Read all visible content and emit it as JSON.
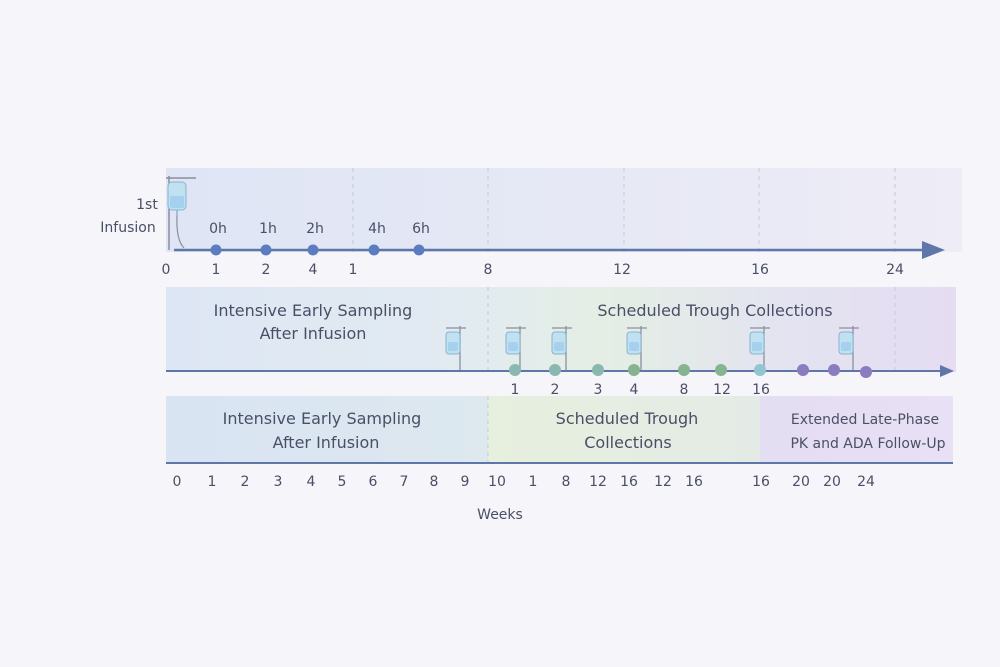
{
  "colors": {
    "axis": "#5f76a8",
    "timeline_dot": "#5b7cc0",
    "trough_dot_teal": "#8ab8b0",
    "trough_dot_green": "#86b490",
    "trough_dot_cyan": "#8fc6cf",
    "late_dot_purple": "#8b7cc0",
    "band_blue": "#dfe6f3",
    "band_green": "#e6efdf",
    "band_purple": "#e6def3",
    "iv_bag": "#bfe1f2"
  },
  "top_timeline": {
    "event_label_line1": "1st",
    "event_label_line2": "Infusion",
    "hour_labels": [
      "0h",
      "1h",
      "2h",
      "4h",
      "6h"
    ],
    "axis_ticks": [
      "0",
      "1",
      "2",
      "4",
      "1",
      "8",
      "12",
      "16",
      "24"
    ]
  },
  "middle_panel": {
    "left_title_line1": "Intensive Early Sampling",
    "left_title_line2": "After Infusion",
    "right_title": "Scheduled Trough Collections",
    "point_labels": [
      "1",
      "2",
      "3",
      "4",
      "8",
      "12",
      "16"
    ]
  },
  "bottom_panel": {
    "phase1_line1": "Intensive Early Sampling",
    "phase1_line2": "After Infusion",
    "phase2_line1": "Scheduled Trough",
    "phase2_line2": "Collections",
    "phase3_line1": "Extended Late-Phase",
    "phase3_line2": "PK and ADA Follow-Up",
    "axis_ticks": [
      "0",
      "1",
      "2",
      "3",
      "4",
      "5",
      "6",
      "7",
      "8",
      "9",
      "10",
      "1",
      "8",
      "12",
      "16",
      "12",
      "16",
      "16",
      "20",
      "20",
      "24"
    ],
    "axis_title": "Weeks"
  }
}
